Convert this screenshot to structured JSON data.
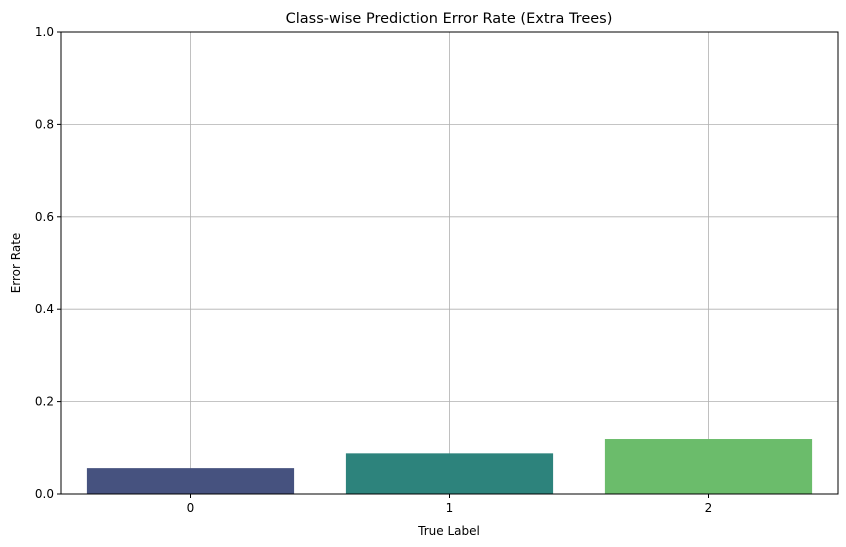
{
  "chart_data": {
    "type": "bar",
    "title": "Class-wise Prediction Error Rate (Extra Trees)",
    "xlabel": "True Label",
    "ylabel": "Error Rate",
    "categories": [
      "0",
      "1",
      "2"
    ],
    "values": [
      0.056,
      0.088,
      0.119
    ],
    "colors": [
      "#46527f",
      "#2d837c",
      "#6bbc6b"
    ],
    "ylim": [
      0,
      1.0
    ],
    "yticks": [
      0.0,
      0.2,
      0.4,
      0.6,
      0.8,
      1.0
    ],
    "ytick_labels": [
      "0.0",
      "0.2",
      "0.4",
      "0.6",
      "0.8",
      "1.0"
    ],
    "grid": true,
    "grid_color": "#b0b0b0"
  }
}
